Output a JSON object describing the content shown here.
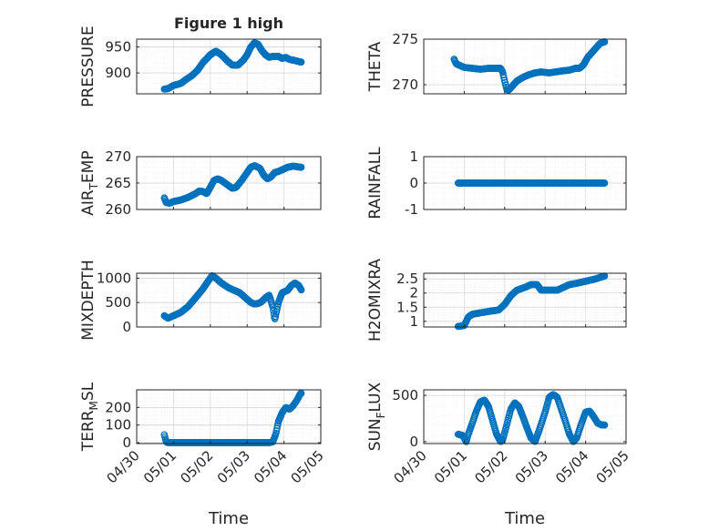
{
  "figure": {
    "title": "Figure 1 high",
    "marker_color": "#0072BD",
    "axis_color": "#262626",
    "grid_color": "#d9d9d9"
  },
  "chart_data": [
    {
      "type": "scatter",
      "id": "pressure",
      "ylabel": "PRESSURE",
      "ylabel_sub": "",
      "xlim": [
        "04/30",
        "05/05"
      ],
      "ylim": [
        860,
        965
      ],
      "yticks": [
        900,
        950
      ],
      "x_tick_labels": [],
      "xlabel": "",
      "x_range_days": [
        0.75,
        4.47
      ],
      "knots": [
        [
          0.75,
          869
        ],
        [
          0.85,
          870
        ],
        [
          1.0,
          876
        ],
        [
          1.2,
          880
        ],
        [
          1.35,
          888
        ],
        [
          1.5,
          895
        ],
        [
          1.65,
          905
        ],
        [
          1.8,
          920
        ],
        [
          2.0,
          935
        ],
        [
          2.15,
          942
        ],
        [
          2.3,
          935
        ],
        [
          2.45,
          924
        ],
        [
          2.6,
          915
        ],
        [
          2.75,
          915
        ],
        [
          2.9,
          925
        ],
        [
          3.0,
          935
        ],
        [
          3.1,
          950
        ],
        [
          3.2,
          958
        ],
        [
          3.3,
          955
        ],
        [
          3.4,
          943
        ],
        [
          3.5,
          935
        ],
        [
          3.6,
          930
        ],
        [
          3.7,
          932
        ],
        [
          3.85,
          932
        ],
        [
          3.95,
          928
        ],
        [
          4.05,
          930
        ],
        [
          4.15,
          926
        ],
        [
          4.3,
          924
        ],
        [
          4.45,
          921
        ]
      ]
    },
    {
      "type": "scatter",
      "id": "theta",
      "ylabel": "THETA",
      "ylabel_sub": "",
      "xlim": [
        "04/30",
        "05/05"
      ],
      "ylim": [
        269,
        275
      ],
      "yticks": [
        270,
        275
      ],
      "x_tick_labels": [],
      "xlabel": "",
      "x_range_days": [
        0.75,
        4.47
      ],
      "knots": [
        [
          0.75,
          272.8
        ],
        [
          0.8,
          272.3
        ],
        [
          0.9,
          272.1
        ],
        [
          1.0,
          271.9
        ],
        [
          1.2,
          271.8
        ],
        [
          1.4,
          271.7
        ],
        [
          1.6,
          271.8
        ],
        [
          1.8,
          271.8
        ],
        [
          1.9,
          271.8
        ],
        [
          1.95,
          271.4
        ],
        [
          2.0,
          270.4
        ],
        [
          2.05,
          269.5
        ],
        [
          2.1,
          269.4
        ],
        [
          2.2,
          269.9
        ],
        [
          2.3,
          270.4
        ],
        [
          2.45,
          270.8
        ],
        [
          2.6,
          271.1
        ],
        [
          2.75,
          271.3
        ],
        [
          2.9,
          271.4
        ],
        [
          3.1,
          271.3
        ],
        [
          3.25,
          271.4
        ],
        [
          3.4,
          271.5
        ],
        [
          3.6,
          271.6
        ],
        [
          3.75,
          271.8
        ],
        [
          3.85,
          271.8
        ],
        [
          3.95,
          272.2
        ],
        [
          4.05,
          273.0
        ],
        [
          4.15,
          273.5
        ],
        [
          4.25,
          274.0
        ],
        [
          4.35,
          274.5
        ],
        [
          4.45,
          274.7
        ]
      ]
    },
    {
      "type": "scatter",
      "id": "airtemp",
      "ylabel": "AIR",
      "ylabel_sub": "T",
      "ylabel_suffix": "EMP",
      "xlim": [
        "04/30",
        "05/05"
      ],
      "ylim": [
        260,
        270
      ],
      "yticks": [
        260,
        265,
        270
      ],
      "x_tick_labels": [],
      "xlabel": "",
      "x_range_days": [
        0.75,
        4.47
      ],
      "knots": [
        [
          0.75,
          262.2
        ],
        [
          0.8,
          261.3
        ],
        [
          0.9,
          261.2
        ],
        [
          1.0,
          261.5
        ],
        [
          1.2,
          261.8
        ],
        [
          1.4,
          262.3
        ],
        [
          1.6,
          263.0
        ],
        [
          1.7,
          263.5
        ],
        [
          1.8,
          263.4
        ],
        [
          1.9,
          263.0
        ],
        [
          2.0,
          264.2
        ],
        [
          2.1,
          265.5
        ],
        [
          2.2,
          265.8
        ],
        [
          2.3,
          265.5
        ],
        [
          2.4,
          265.0
        ],
        [
          2.6,
          264.0
        ],
        [
          2.7,
          264.2
        ],
        [
          2.85,
          265.5
        ],
        [
          3.0,
          267.0
        ],
        [
          3.1,
          268.0
        ],
        [
          3.2,
          268.3
        ],
        [
          3.35,
          267.8
        ],
        [
          3.45,
          266.5
        ],
        [
          3.55,
          265.8
        ],
        [
          3.65,
          266.2
        ],
        [
          3.75,
          267.0
        ],
        [
          3.85,
          267.2
        ],
        [
          3.95,
          267.5
        ],
        [
          4.1,
          268.0
        ],
        [
          4.25,
          268.2
        ],
        [
          4.45,
          268.0
        ]
      ]
    },
    {
      "type": "scatter",
      "id": "rainfall",
      "ylabel": "RAINFALL",
      "ylabel_sub": "",
      "xlim": [
        "04/30",
        "05/05"
      ],
      "ylim": [
        -1,
        1
      ],
      "yticks": [
        -1,
        0,
        1
      ],
      "x_tick_labels": [],
      "xlabel": "",
      "x_range_days": [
        0.85,
        4.47
      ],
      "knots": [
        [
          0.85,
          0
        ],
        [
          4.47,
          0
        ]
      ]
    },
    {
      "type": "scatter",
      "id": "mixdepth",
      "ylabel": "MIXDEPTH",
      "ylabel_sub": "",
      "xlim": [
        "04/30",
        "05/05"
      ],
      "ylim": [
        0,
        1100
      ],
      "yticks": [
        0,
        500,
        1000
      ],
      "x_tick_labels": [],
      "xlabel": "",
      "x_range_days": [
        0.75,
        4.47
      ],
      "knots": [
        [
          0.75,
          230
        ],
        [
          0.85,
          180
        ],
        [
          1.0,
          230
        ],
        [
          1.2,
          300
        ],
        [
          1.4,
          420
        ],
        [
          1.6,
          600
        ],
        [
          1.8,
          780
        ],
        [
          1.95,
          950
        ],
        [
          2.05,
          1050
        ],
        [
          2.15,
          1000
        ],
        [
          2.3,
          900
        ],
        [
          2.5,
          800
        ],
        [
          2.65,
          750
        ],
        [
          2.8,
          700
        ],
        [
          2.95,
          600
        ],
        [
          3.1,
          500
        ],
        [
          3.2,
          470
        ],
        [
          3.3,
          480
        ],
        [
          3.4,
          520
        ],
        [
          3.5,
          600
        ],
        [
          3.6,
          650
        ],
        [
          3.7,
          400
        ],
        [
          3.75,
          150
        ],
        [
          3.85,
          500
        ],
        [
          3.95,
          700
        ],
        [
          4.1,
          750
        ],
        [
          4.2,
          850
        ],
        [
          4.3,
          900
        ],
        [
          4.4,
          850
        ],
        [
          4.47,
          760
        ]
      ]
    },
    {
      "type": "scatter",
      "id": "h2omixra",
      "ylabel": "H2OMIXRA",
      "ylabel_sub": "",
      "xlim": [
        "04/30",
        "05/05"
      ],
      "ylim": [
        0.8,
        2.7
      ],
      "yticks": [
        1,
        1.5,
        2,
        2.5
      ],
      "x_tick_labels": [],
      "xlabel": "",
      "x_range_days": [
        0.85,
        4.47
      ],
      "knots": [
        [
          0.85,
          0.82
        ],
        [
          1.0,
          0.85
        ],
        [
          1.1,
          1.15
        ],
        [
          1.2,
          1.25
        ],
        [
          1.4,
          1.3
        ],
        [
          1.6,
          1.35
        ],
        [
          1.85,
          1.4
        ],
        [
          2.0,
          1.6
        ],
        [
          2.15,
          1.9
        ],
        [
          2.3,
          2.1
        ],
        [
          2.5,
          2.2
        ],
        [
          2.65,
          2.3
        ],
        [
          2.8,
          2.3
        ],
        [
          2.9,
          2.1
        ],
        [
          3.1,
          2.1
        ],
        [
          3.3,
          2.1
        ],
        [
          3.45,
          2.2
        ],
        [
          3.6,
          2.3
        ],
        [
          3.8,
          2.35
        ],
        [
          3.95,
          2.4
        ],
        [
          4.1,
          2.45
        ],
        [
          4.25,
          2.5
        ],
        [
          4.35,
          2.55
        ],
        [
          4.47,
          2.6
        ]
      ]
    },
    {
      "type": "scatter",
      "id": "terrmsl",
      "ylabel": "TERR",
      "ylabel_sub": "M",
      "ylabel_suffix": "SL",
      "xlim": [
        "04/30",
        "05/05"
      ],
      "ylim": [
        -5,
        300
      ],
      "yticks": [
        0,
        100,
        200
      ],
      "x_tick_labels": [
        "04/30",
        "05/01",
        "05/02",
        "05/03",
        "05/04",
        "05/05"
      ],
      "xlabel": "Time",
      "x_range_days": [
        0.75,
        4.47
      ],
      "knots": [
        [
          0.75,
          45
        ],
        [
          0.8,
          5
        ],
        [
          0.85,
          0
        ],
        [
          3.6,
          0
        ],
        [
          3.7,
          5
        ],
        [
          3.78,
          50
        ],
        [
          3.85,
          120
        ],
        [
          3.95,
          170
        ],
        [
          4.05,
          200
        ],
        [
          4.15,
          190
        ],
        [
          4.25,
          210
        ],
        [
          4.35,
          240
        ],
        [
          4.45,
          280
        ]
      ]
    },
    {
      "type": "scatter",
      "id": "sunflux",
      "ylabel": "SUN",
      "ylabel_sub": "F",
      "ylabel_suffix": "LUX",
      "xlim": [
        "04/30",
        "05/05"
      ],
      "ylim": [
        -20,
        560
      ],
      "yticks": [
        0,
        500
      ],
      "x_tick_labels": [
        "04/30",
        "05/01",
        "05/02",
        "05/03",
        "05/04",
        "05/05"
      ],
      "xlabel": "Time",
      "x_range_days": [
        0.85,
        4.47
      ],
      "knots": [
        [
          0.85,
          80
        ],
        [
          0.95,
          70
        ],
        [
          1.0,
          40
        ],
        [
          1.05,
          0
        ],
        [
          1.1,
          80
        ],
        [
          1.2,
          200
        ],
        [
          1.3,
          330
        ],
        [
          1.4,
          430
        ],
        [
          1.5,
          450
        ],
        [
          1.6,
          380
        ],
        [
          1.7,
          230
        ],
        [
          1.8,
          80
        ],
        [
          1.9,
          0
        ],
        [
          1.95,
          20
        ],
        [
          2.05,
          180
        ],
        [
          2.15,
          350
        ],
        [
          2.25,
          420
        ],
        [
          2.35,
          380
        ],
        [
          2.45,
          270
        ],
        [
          2.55,
          150
        ],
        [
          2.65,
          40
        ],
        [
          2.75,
          0
        ],
        [
          2.85,
          120
        ],
        [
          3.0,
          320
        ],
        [
          3.1,
          480
        ],
        [
          3.2,
          510
        ],
        [
          3.3,
          480
        ],
        [
          3.4,
          350
        ],
        [
          3.5,
          220
        ],
        [
          3.6,
          80
        ],
        [
          3.7,
          0
        ],
        [
          3.78,
          40
        ],
        [
          3.9,
          200
        ],
        [
          4.0,
          320
        ],
        [
          4.1,
          330
        ],
        [
          4.2,
          270
        ],
        [
          4.3,
          200
        ],
        [
          4.4,
          180
        ]
      ]
    }
  ]
}
